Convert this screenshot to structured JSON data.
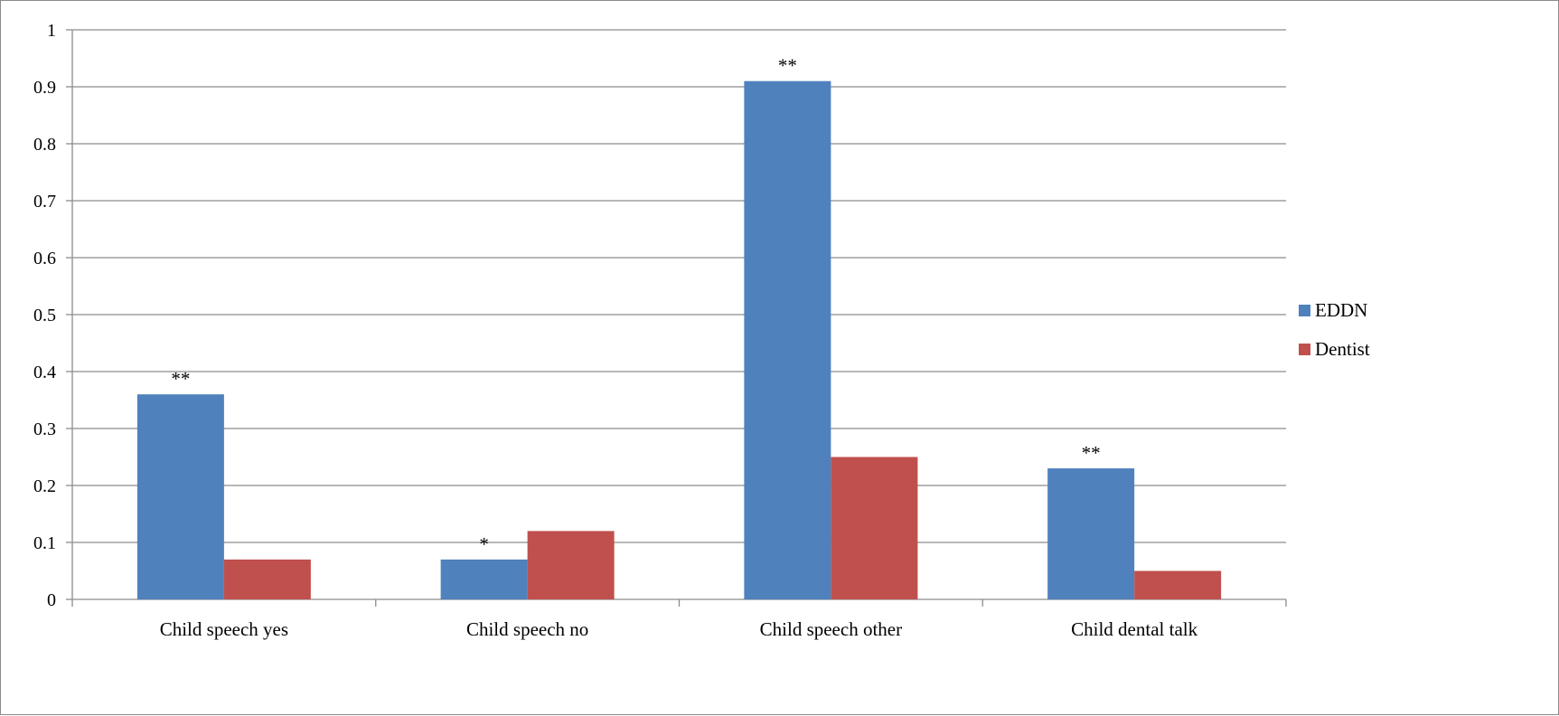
{
  "chart_data": {
    "type": "bar",
    "title": "",
    "xlabel": "",
    "ylabel": "",
    "categories": [
      "Child speech yes",
      "Child speech no",
      "Child speech other",
      "Child dental talk"
    ],
    "series": [
      {
        "name": "EDDN",
        "color": "#4f81bd",
        "values": [
          0.36,
          0.07,
          0.91,
          0.23
        ]
      },
      {
        "name": "Dentist",
        "color": "#c0504d",
        "values": [
          0.07,
          0.12,
          0.25,
          0.05
        ]
      }
    ],
    "ylim": [
      0,
      1
    ],
    "yticks": [
      "0",
      "0.1",
      "0.2",
      "0.3",
      "0.4",
      "0.5",
      "0.6",
      "0.7",
      "0.8",
      "0.9",
      "1"
    ],
    "grid": true,
    "legend_position": "right",
    "annotations": [
      {
        "category": "Child speech yes",
        "series": "EDDN",
        "text": "**"
      },
      {
        "category": "Child speech no",
        "series": "EDDN",
        "text": "*"
      },
      {
        "category": "Child speech other",
        "series": "EDDN",
        "text": "**"
      },
      {
        "category": "Child dental talk",
        "series": "EDDN",
        "text": "**"
      }
    ]
  }
}
